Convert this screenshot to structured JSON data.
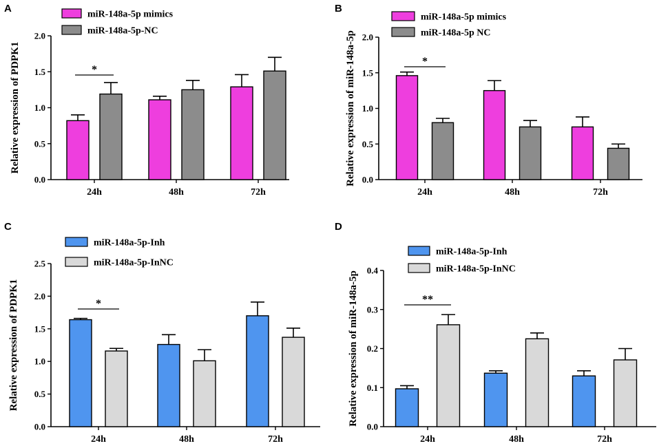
{
  "chart_data": [
    {
      "panel": "A",
      "type": "bar",
      "ylabel": "Relative expression of PDPK1",
      "categories": [
        "24h",
        "48h",
        "72h"
      ],
      "ylim": [
        0,
        2.0
      ],
      "ytick_labels": [
        "0.0",
        "0.5",
        "1.0",
        "1.5",
        "2.0"
      ],
      "series": [
        {
          "name": "miR-148a-5p mimics",
          "color": "#ee3ede",
          "values": [
            0.82,
            1.11,
            1.29
          ],
          "errors": [
            0.08,
            0.05,
            0.17
          ]
        },
        {
          "name": "miR-148a-5p-NC",
          "color": "#8c8c8c",
          "values": [
            1.19,
            1.25,
            1.51
          ],
          "errors": [
            0.16,
            0.13,
            0.19
          ]
        }
      ],
      "significance": [
        {
          "category": "24h",
          "label": "*"
        }
      ]
    },
    {
      "panel": "B",
      "type": "bar",
      "ylabel": "Relative expression of miR-148a-5p",
      "categories": [
        "24h",
        "48h",
        "72h"
      ],
      "ylim": [
        0,
        2.0
      ],
      "ytick_labels": [
        "0.0",
        "0.5",
        "1.0",
        "1.5",
        "2.0"
      ],
      "series": [
        {
          "name": "miR-148a-5p mimics",
          "color": "#ee3ede",
          "values": [
            1.46,
            1.25,
            0.74
          ],
          "errors": [
            0.05,
            0.14,
            0.14
          ]
        },
        {
          "name": "miR-148a-5p NC",
          "color": "#8c8c8c",
          "values": [
            0.8,
            0.74,
            0.44
          ],
          "errors": [
            0.06,
            0.09,
            0.06
          ]
        }
      ],
      "significance": [
        {
          "category": "24h",
          "label": "*"
        }
      ]
    },
    {
      "panel": "C",
      "type": "bar",
      "ylabel": "Relative expression of PDPK1",
      "categories": [
        "24h",
        "48h",
        "72h"
      ],
      "ylim": [
        0,
        2.5
      ],
      "ytick_labels": [
        "0.0",
        "0.5",
        "1.0",
        "1.5",
        "2.0",
        "2.5"
      ],
      "series": [
        {
          "name": "miR-148a-5p-Inh",
          "color": "#4f95ef",
          "values": [
            1.64,
            1.26,
            1.7
          ],
          "errors": [
            0.02,
            0.15,
            0.21
          ]
        },
        {
          "name": "miR-148a-5p-InNC",
          "color": "#d9d9d9",
          "values": [
            1.16,
            1.01,
            1.37
          ],
          "errors": [
            0.04,
            0.17,
            0.14
          ]
        }
      ],
      "significance": [
        {
          "category": "24h",
          "label": "*"
        }
      ]
    },
    {
      "panel": "D",
      "type": "bar",
      "ylabel": "Relative expression of miR-148a-5p",
      "categories": [
        "24h",
        "48h",
        "72h"
      ],
      "ylim": [
        0,
        0.4
      ],
      "ytick_labels": [
        "0.0",
        "0.1",
        "0.2",
        "0.3",
        "0.4"
      ],
      "series": [
        {
          "name": "miR-148a-5p-Inh",
          "color": "#4f95ef",
          "values": [
            0.097,
            0.137,
            0.13
          ],
          "errors": [
            0.008,
            0.006,
            0.013
          ]
        },
        {
          "name": "miR-148a-5p-InNC",
          "color": "#d9d9d9",
          "values": [
            0.261,
            0.225,
            0.171
          ],
          "errors": [
            0.026,
            0.015,
            0.029
          ]
        }
      ],
      "significance": [
        {
          "category": "24h",
          "label": "**"
        }
      ]
    }
  ]
}
